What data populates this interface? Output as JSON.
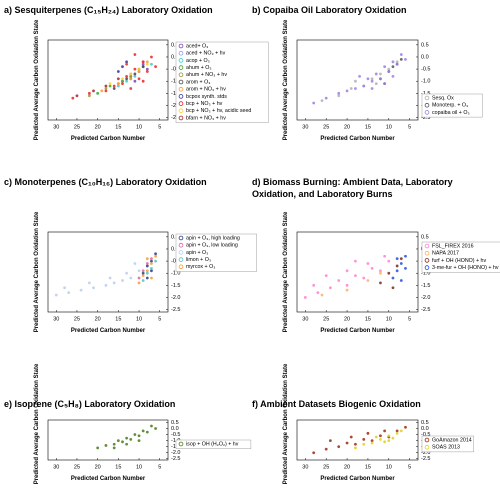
{
  "chart_data": [
    {
      "type": "scatter",
      "title": "a) Sesquiterpenes (C₁₅H₂₄) Laboratory Oxidation",
      "x_label": "Predicted Carbon Number",
      "y_label": "Predicted Average Carbon Oxidation State",
      "xlim": [
        32,
        3
      ],
      "ylim": [
        -2.6,
        0.7
      ],
      "xticks": [
        30,
        25,
        20,
        15,
        10,
        5
      ],
      "yticks": [
        0.5,
        {
          "value": 0,
          "label": "0.0"
        },
        -0.5,
        {
          "value": -1,
          "label": "-1.0"
        },
        -1.5,
        {
          "value": -2,
          "label": "-2.0"
        },
        -2.5
      ],
      "series": [
        {
          "name": "aced+ O₃",
          "color": "#7b3fbf",
          "x": [
            12,
            10,
            9,
            8,
            11
          ],
          "values": [
            -0.8,
            -0.6,
            -0.3,
            -0.5,
            -1.0
          ]
        },
        {
          "name": "aced + NO₃ + hv",
          "color": "#9999ff",
          "x": [
            14,
            12,
            10,
            9
          ],
          "values": [
            -1.0,
            -0.7,
            -0.6,
            -0.2
          ]
        },
        {
          "name": "acop + O₃",
          "color": "#33cccc",
          "x": [
            15,
            13,
            11,
            9,
            7
          ],
          "values": [
            -1.2,
            -1.0,
            -0.8,
            -0.4,
            -0.3
          ]
        },
        {
          "name": "ahum + O₃",
          "color": "#33aa33",
          "x": [
            20,
            17,
            14,
            12,
            10
          ],
          "values": [
            -1.5,
            -1.2,
            -1.0,
            -0.9,
            -0.5
          ]
        },
        {
          "name": "ahum + NO₃ + hv",
          "color": "#999933",
          "x": [
            22,
            18,
            15,
            12
          ],
          "values": [
            -1.6,
            -1.3,
            -1.1,
            -0.8
          ]
        },
        {
          "name": "arom + O₃",
          "color": "#444444",
          "x": [
            16,
            13,
            11,
            9
          ],
          "values": [
            -1.3,
            -0.9,
            -0.7,
            -0.4
          ]
        },
        {
          "name": "arom + NO₃ + hv",
          "color": "#ff9933",
          "x": [
            19,
            15,
            12,
            10,
            8
          ],
          "values": [
            -1.4,
            -1.1,
            -0.9,
            -0.6,
            -0.2
          ]
        },
        {
          "name": "bcpox synth. stds",
          "color": "#333399",
          "x": [
            15,
            14,
            13
          ],
          "values": [
            -0.6,
            -0.4,
            -0.2
          ]
        },
        {
          "name": "bcp + NO₃ + hv",
          "color": "#ee2222",
          "x": [
            26,
            22,
            18,
            16,
            14,
            13,
            12,
            11,
            10,
            9,
            8,
            7,
            6,
            13,
            11,
            9
          ],
          "values": [
            -1.7,
            -1.5,
            -1.4,
            -1.2,
            -1.1,
            -0.8,
            -1.3,
            -0.5,
            -0.9,
            -0.2,
            -0.6,
            0.0,
            -0.4,
            -0.3,
            0.1,
            -1.0
          ]
        },
        {
          "name": "bcp + NO₃ + hv, acidic seed",
          "color": "#ffcc33",
          "x": [
            17,
            14,
            12,
            10,
            8
          ],
          "values": [
            -1.1,
            -0.9,
            -0.7,
            -0.5,
            -0.3
          ]
        },
        {
          "name": "bfarn + NO₃ + hv",
          "color": "#aa2222",
          "x": [
            25,
            21,
            18,
            15
          ],
          "values": [
            -1.6,
            -1.4,
            -1.2,
            -0.9
          ]
        }
      ]
    },
    {
      "type": "scatter",
      "title": "b) Copaiba Oil Laboratory Oxidation",
      "x_label": "Predicted Carbon Number",
      "y_label": "Predicted Average Carbon Oxidation State",
      "xlim": [
        32,
        3
      ],
      "ylim": [
        -2.6,
        0.7
      ],
      "xticks": [
        30,
        25,
        20,
        15,
        10,
        5
      ],
      "yticks": [
        0.5,
        {
          "value": 0,
          "label": "0.0"
        },
        -0.5,
        {
          "value": -1,
          "label": "-1.0"
        },
        -1.5,
        {
          "value": -2,
          "label": "-2.0"
        },
        -2.5
      ],
      "series": [
        {
          "name": "Sesq. Ox",
          "color": "#b0b0b0",
          "x": [
            26,
            22,
            19,
            16,
            14,
            12,
            10,
            8,
            18,
            13
          ],
          "values": [
            -1.8,
            -1.6,
            -1.3,
            -1.2,
            -0.9,
            -0.7,
            -0.5,
            -0.2,
            -1.0,
            -1.1
          ]
        },
        {
          "name": "Monoterp. + O₃",
          "color": "#555555",
          "x": [
            12,
            10,
            9,
            8,
            7,
            11
          ],
          "values": [
            -0.9,
            -0.6,
            -0.4,
            -0.3,
            -0.1,
            -1.1
          ]
        },
        {
          "name": "copaiba oil + O₃",
          "color": "#a07ce0",
          "x": [
            28,
            25,
            22,
            20,
            18,
            16,
            15,
            14,
            13,
            12,
            11,
            10,
            9,
            8,
            7,
            6,
            17,
            14,
            11,
            9
          ],
          "values": [
            -1.9,
            -1.7,
            -1.5,
            -1.4,
            -1.3,
            -1.2,
            -0.9,
            -1.0,
            -0.7,
            -0.9,
            -0.4,
            -0.6,
            -0.2,
            -0.3,
            0.1,
            -0.1,
            -0.8,
            -1.3,
            -1.1,
            -0.8
          ]
        }
      ]
    },
    {
      "type": "scatter",
      "title": "c) Monoterpenes (C₁₀H₁₆) Laboratory Oxidation",
      "x_label": "Predicted Carbon Number",
      "y_label": "Predicted Average Carbon Oxidation State",
      "xlim": [
        32,
        3
      ],
      "ylim": [
        -2.6,
        0.7
      ],
      "xticks": [
        30,
        25,
        20,
        15,
        10,
        5
      ],
      "yticks": [
        0.5,
        {
          "value": 0,
          "label": "0.0"
        },
        -0.5,
        {
          "value": -1,
          "label": "-1.0"
        },
        -1.5,
        {
          "value": -2,
          "label": "-2.0"
        },
        -2.5
      ],
      "series": [
        {
          "name": "apin + O₃, high loading",
          "color": "#2a3a8a",
          "x": [
            9,
            8,
            7,
            6,
            8,
            7
          ],
          "values": [
            -1.0,
            -0.7,
            -0.5,
            -0.2,
            -1.2,
            -0.9
          ]
        },
        {
          "name": "apin + O₃, low loading",
          "color": "#e060a0",
          "x": [
            10,
            9,
            8,
            7
          ],
          "values": [
            -1.2,
            -0.9,
            -0.6,
            -0.4
          ]
        },
        {
          "name": "apin + O₃",
          "color": "#b8cdf0",
          "x": [
            30,
            27,
            24,
            21,
            18,
            16,
            14,
            12,
            10,
            28,
            22,
            17,
            13,
            11
          ],
          "values": [
            -1.9,
            -1.8,
            -1.7,
            -1.6,
            -1.5,
            -1.4,
            -1.3,
            -1.2,
            -0.9,
            -1.6,
            -1.4,
            -1.2,
            -1.0,
            -0.6
          ]
        },
        {
          "name": "limon + O₃",
          "color": "#5bc0c0",
          "x": [
            9,
            8,
            7,
            6
          ],
          "values": [
            -1.3,
            -1.0,
            -0.8,
            -0.5
          ]
        },
        {
          "name": "myrcox + O₃",
          "color": "#f0a030",
          "x": [
            10,
            9,
            8,
            7,
            6,
            7,
            8
          ],
          "values": [
            -1.4,
            -1.1,
            -0.9,
            -0.6,
            -0.3,
            -1.2,
            -0.4
          ]
        }
      ]
    },
    {
      "type": "scatter",
      "title": "d) Biomass Burning: Ambient Data, Laboratory Oxidation, and Laboratory Burns",
      "x_label": "Predicted Carbon Number",
      "y_label": "Predicted Average Carbon Oxidation State",
      "xlim": [
        32,
        3
      ],
      "ylim": [
        -2.6,
        0.7
      ],
      "xticks": [
        30,
        25,
        20,
        15,
        10,
        5
      ],
      "yticks": [
        0.5,
        {
          "value": 0,
          "label": "0.0"
        },
        -0.5,
        {
          "value": -1,
          "label": "-1.0"
        },
        -1.5,
        {
          "value": -2,
          "label": "-2.0"
        },
        -2.5
      ],
      "series": [
        {
          "name": "FSL_FIREX 2016",
          "color": "#ff80d0",
          "x": [
            30,
            27,
            24,
            22,
            20,
            18,
            16,
            14,
            12,
            10,
            25,
            20,
            15,
            11,
            28,
            18
          ],
          "values": [
            -2.0,
            -1.8,
            -1.6,
            -1.3,
            -1.5,
            -1.1,
            -1.2,
            -0.8,
            -0.9,
            -0.5,
            -1.1,
            -0.9,
            -0.6,
            -0.3,
            -1.5,
            -0.5
          ]
        },
        {
          "name": "NAPA 2017",
          "color": "#ffb060",
          "x": [
            26,
            20,
            15,
            12
          ],
          "values": [
            -1.9,
            -1.7,
            -1.3,
            -1.0
          ]
        },
        {
          "name": "furf + OH (HONO) + hv",
          "color": "#7a2a1a",
          "x": [
            12,
            10,
            8,
            9,
            7
          ],
          "values": [
            -1.4,
            -1.0,
            -0.7,
            -1.6,
            -0.4
          ]
        },
        {
          "name": "3-me-fur + OH (HONO) + hv",
          "color": "#2050e0",
          "x": [
            9,
            8,
            7,
            6,
            7,
            8,
            6
          ],
          "values": [
            -1.2,
            -0.9,
            -0.6,
            -0.3,
            -1.3,
            -0.4,
            -0.8
          ]
        }
      ]
    },
    {
      "type": "scatter",
      "title": "e) Isoprene (C₅H₈) Laboratory Oxidation",
      "x_label": "Predicted Carbon Number",
      "y_label": "Predicted Average Carbon Oxidation State",
      "xlim": [
        32,
        3
      ],
      "ylim": [
        -2.6,
        0.7
      ],
      "xticks": [
        30,
        25,
        20,
        15,
        10,
        5
      ],
      "yticks": [
        0.5,
        {
          "value": 0,
          "label": "0.0"
        },
        -0.5,
        {
          "value": -1,
          "label": "-1.0"
        },
        -1.5,
        {
          "value": -2,
          "label": "-2.0"
        },
        -2.5
      ],
      "series": [
        {
          "name": "isop + OH (H₂O₂) + hv",
          "color": "#4a7a1a",
          "x": [
            20,
            18,
            16,
            15,
            14,
            13,
            12,
            11,
            10,
            9,
            8,
            7,
            6,
            16,
            13,
            10
          ],
          "values": [
            -1.6,
            -1.4,
            -1.3,
            -1.0,
            -1.1,
            -0.8,
            -0.9,
            -0.5,
            -0.6,
            -0.2,
            -0.3,
            0.2,
            0.0,
            -1.6,
            -1.3,
            -1.0
          ]
        }
      ]
    },
    {
      "type": "scatter",
      "title": "f) Ambient Datasets Biogenic Oxidation",
      "x_label": "Predicted Carbon Number",
      "y_label": "Predicted Average Carbon Oxidation State",
      "xlim": [
        32,
        3
      ],
      "ylim": [
        -2.6,
        0.7
      ],
      "xticks": [
        30,
        25,
        20,
        15,
        10,
        5
      ],
      "yticks": [
        0.5,
        {
          "value": 0,
          "label": "0.0"
        },
        -0.5,
        {
          "value": -1,
          "label": "-1.0"
        },
        -1.5,
        {
          "value": -2,
          "label": "-2.0"
        },
        -2.5
      ],
      "series": [
        {
          "name": "GoAmazon 2014",
          "color": "#9a2a10",
          "x": [
            28,
            25,
            22,
            20,
            18,
            16,
            14,
            12,
            10,
            8,
            6,
            24,
            19,
            15,
            11
          ],
          "values": [
            -2.0,
            -1.7,
            -1.5,
            -1.2,
            -1.3,
            -0.9,
            -1.0,
            -0.6,
            -0.7,
            -0.2,
            0.1,
            -1.0,
            -0.7,
            -0.4,
            -0.2
          ]
        },
        {
          "name": "SOAS 2013",
          "color": "#e0d020",
          "x": [
            18,
            16,
            14,
            12,
            11,
            10,
            9,
            8,
            7,
            13,
            10
          ],
          "values": [
            -1.6,
            -1.3,
            -1.2,
            -0.9,
            -1.1,
            -0.6,
            -0.8,
            -0.4,
            -0.2,
            -0.7,
            -1.0
          ]
        }
      ]
    }
  ]
}
